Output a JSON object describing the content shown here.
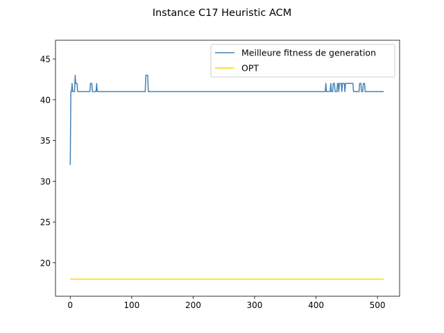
{
  "chart_data": {
    "type": "line",
    "title": "Instance C17 Heuristic ACM",
    "xlabel": "",
    "ylabel": "",
    "xlim": [
      -24,
      536
    ],
    "ylim": [
      15.9,
      47.3
    ],
    "x_ticks": [
      0,
      100,
      200,
      300,
      400,
      500
    ],
    "y_ticks": [
      20,
      25,
      30,
      35,
      40,
      45
    ],
    "grid": false,
    "legend_position": "upper right",
    "series": [
      {
        "name": "Meilleure fitness de generation",
        "color": "#4682b4",
        "points": [
          [
            0,
            32
          ],
          [
            1,
            41
          ],
          [
            2,
            41
          ],
          [
            3,
            42
          ],
          [
            4,
            41
          ],
          [
            7,
            41
          ],
          [
            8,
            43
          ],
          [
            9,
            42
          ],
          [
            11,
            42
          ],
          [
            12,
            41
          ],
          [
            32,
            41
          ],
          [
            33,
            42
          ],
          [
            35,
            42
          ],
          [
            36,
            41
          ],
          [
            42,
            41
          ],
          [
            43,
            42
          ],
          [
            44,
            41
          ],
          [
            122,
            41
          ],
          [
            123,
            43
          ],
          [
            126,
            43
          ],
          [
            127,
            41
          ],
          [
            415,
            41
          ],
          [
            416,
            42
          ],
          [
            417,
            41
          ],
          [
            423,
            41
          ],
          [
            424,
            42
          ],
          [
            425,
            41
          ],
          [
            427,
            41
          ],
          [
            428,
            42
          ],
          [
            430,
            42
          ],
          [
            431,
            41
          ],
          [
            434,
            41
          ],
          [
            435,
            42
          ],
          [
            436,
            42
          ],
          [
            437,
            41
          ],
          [
            438,
            42
          ],
          [
            441,
            42
          ],
          [
            442,
            41
          ],
          [
            443,
            42
          ],
          [
            446,
            42
          ],
          [
            447,
            41
          ],
          [
            448,
            42
          ],
          [
            460,
            42
          ],
          [
            461,
            41
          ],
          [
            470,
            41
          ],
          [
            471,
            42
          ],
          [
            473,
            42
          ],
          [
            474,
            41
          ],
          [
            476,
            41
          ],
          [
            477,
            42
          ],
          [
            479,
            42
          ],
          [
            480,
            41
          ],
          [
            510,
            41
          ]
        ]
      },
      {
        "name": "OPT",
        "color": "#ffd700",
        "points": [
          [
            0,
            18
          ],
          [
            510,
            18
          ]
        ]
      }
    ]
  }
}
